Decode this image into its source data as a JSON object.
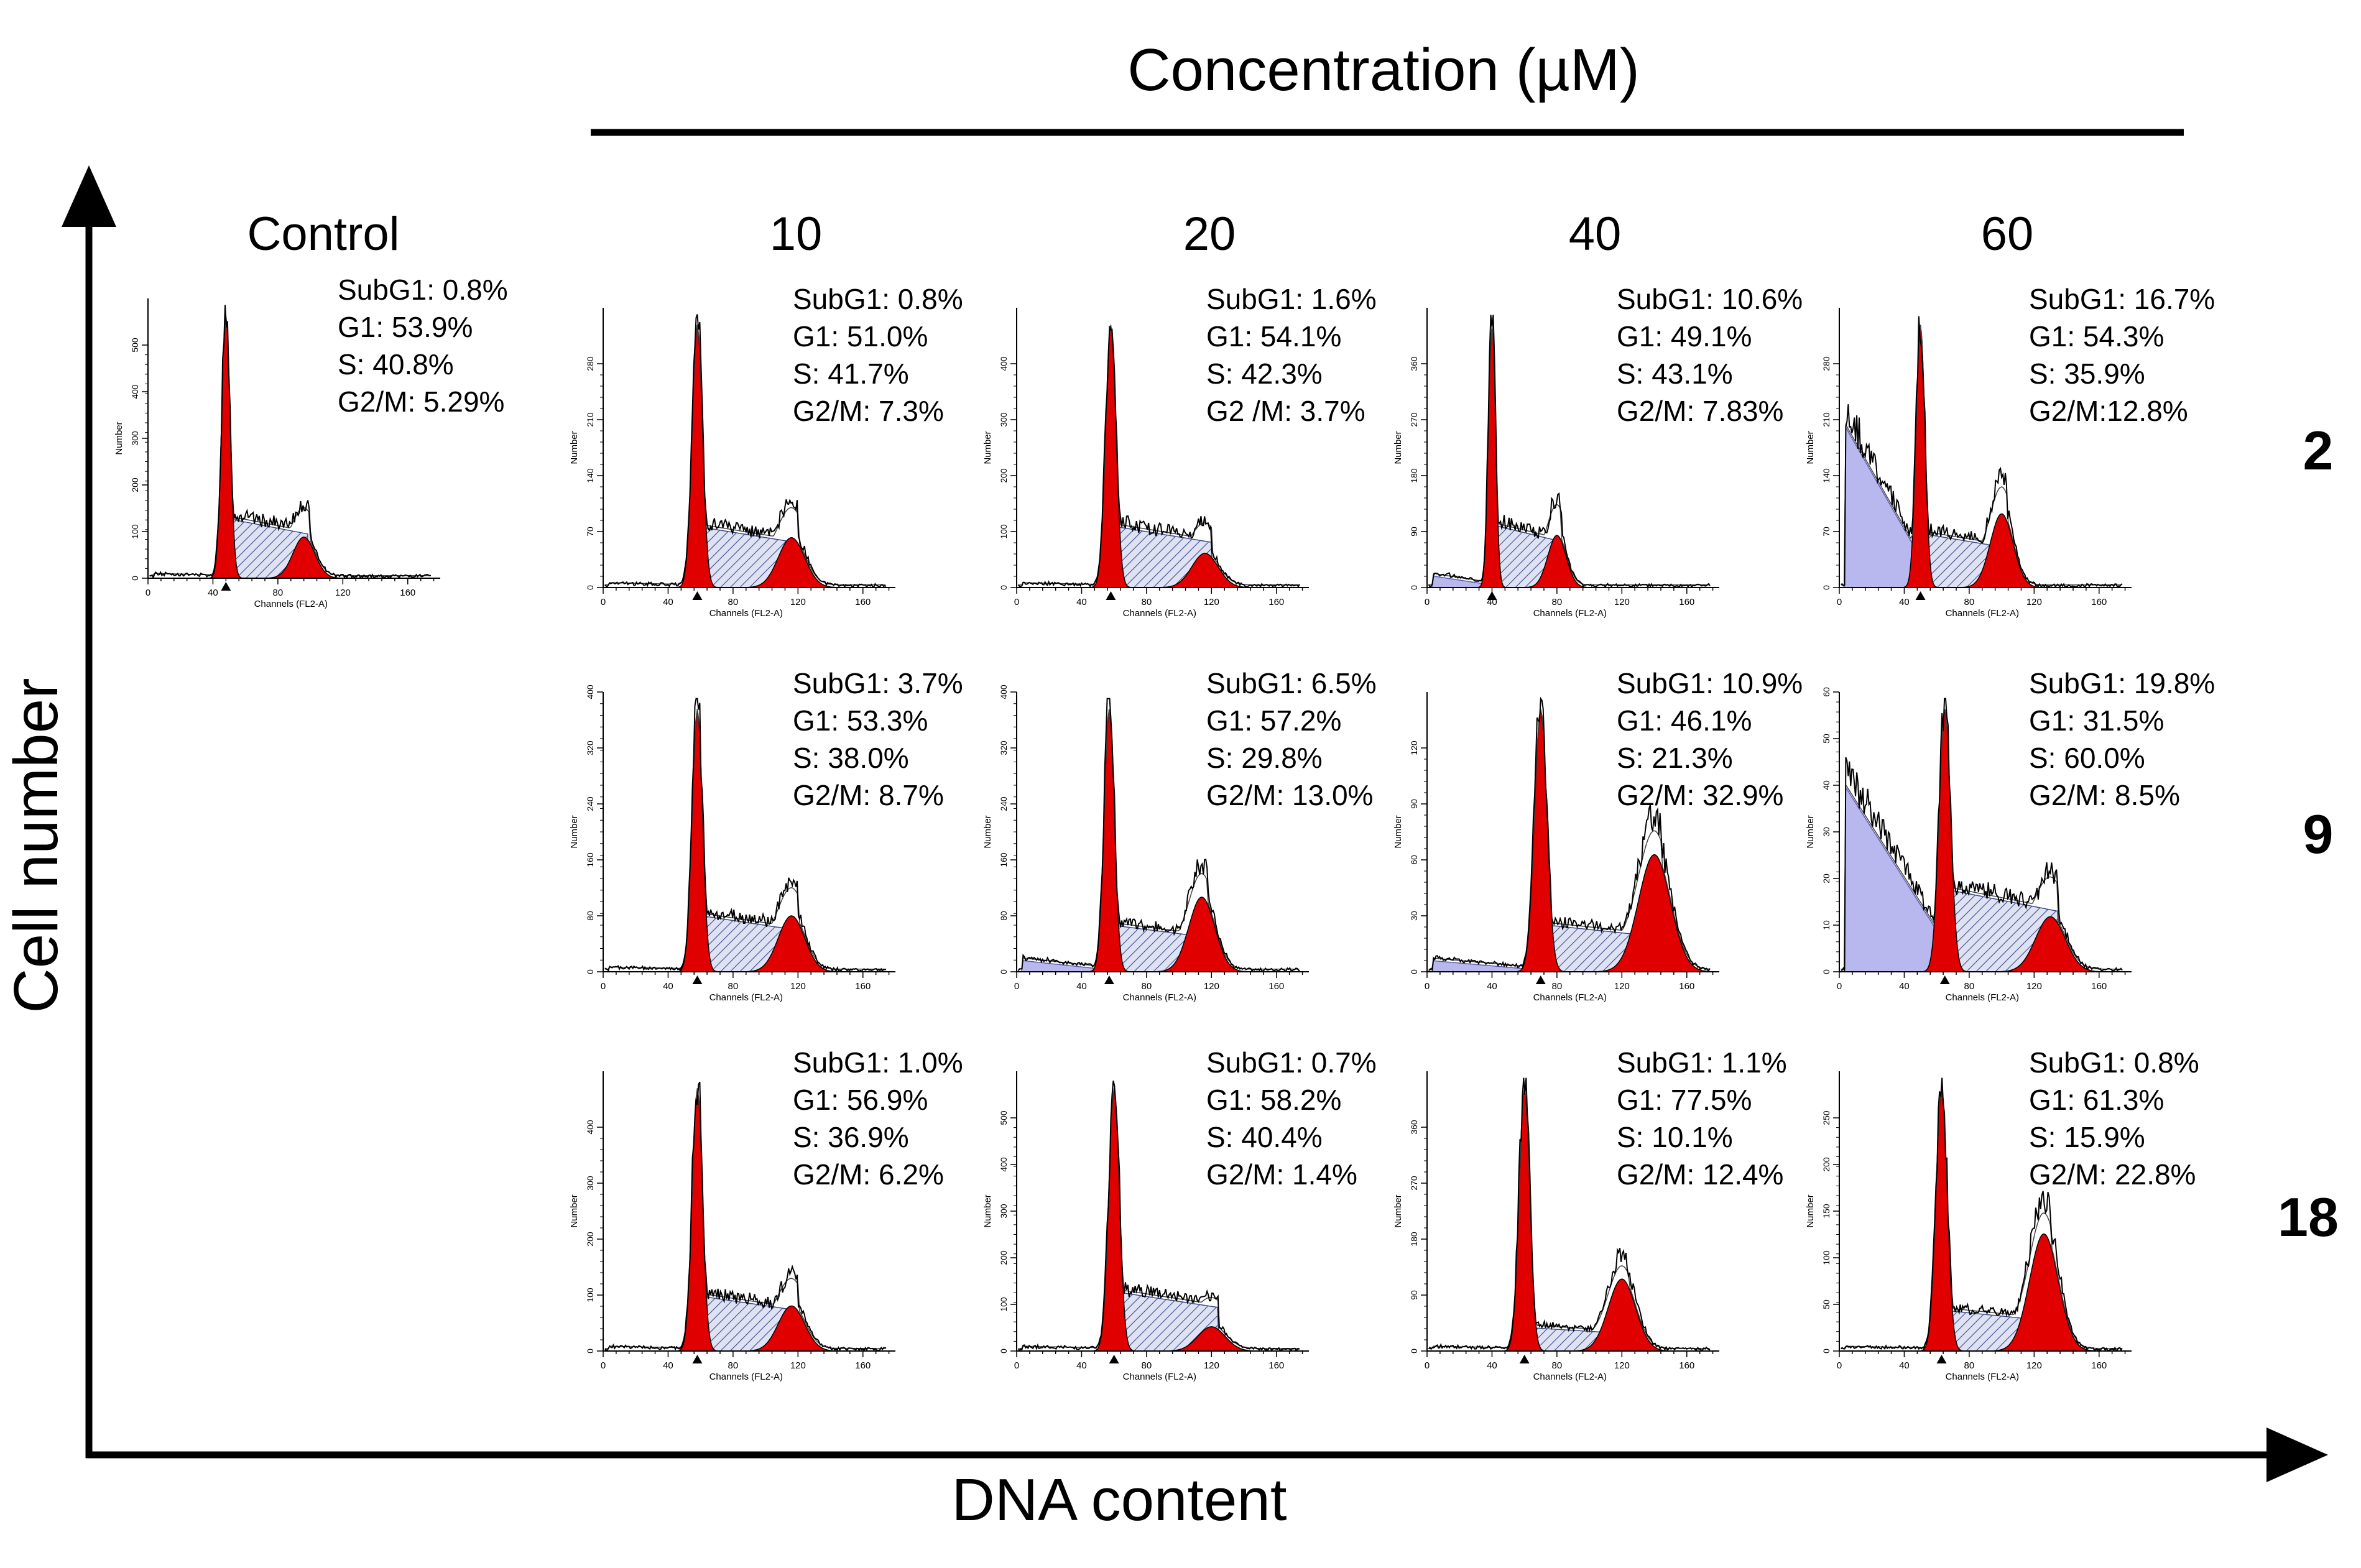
{
  "figure": {
    "header": "Concentration (µM)",
    "y_axis_label": "Cell number",
    "x_axis_label": "DNA content",
    "panel_x_title": "Channels (FL2-A)",
    "panel_y_title": "Number",
    "x_ticks": [
      "0",
      "40",
      "80",
      "120",
      "160"
    ],
    "columns": [
      {
        "label": "Control"
      },
      {
        "label": "10"
      },
      {
        "label": "20"
      },
      {
        "label": "40"
      },
      {
        "label": "60"
      }
    ],
    "rows": [
      {
        "label": "2"
      },
      {
        "label": "9"
      },
      {
        "label": "18"
      }
    ],
    "colors": {
      "g1_g2m_fill": "#e00000",
      "s_phase_hatch": "#3a4a8a",
      "s_phase_fill": "#dfe2f2",
      "subg1_fill": "#b8b8ee",
      "trace": "#000000"
    }
  },
  "chart_data": [
    {
      "type": "histogram",
      "row": "2",
      "column": "Control",
      "x_range": [
        0,
        180
      ],
      "y_max": 600,
      "y_ticks": [
        "0",
        "100",
        "200",
        "300",
        "400",
        "500"
      ],
      "stats": [
        "SubG1: 0.8%",
        "G1: 53.9%",
        "S: 40.8%",
        "G2/M: 5.29%"
      ],
      "g1_mean": 48,
      "g2_mean": 96,
      "subg1_pct": 0.8,
      "g1_pct": 53.9,
      "s_pct": 40.8,
      "g2m_pct": 5.29
    },
    {
      "type": "histogram",
      "row": "2",
      "column": "10",
      "x_range": [
        0,
        180
      ],
      "y_max": 350,
      "y_ticks": [
        "0",
        "70",
        "140",
        "210",
        "280"
      ],
      "stats": [
        "SubG1: 0.8%",
        "G1: 51.0%",
        "S: 41.7%",
        "G2/M: 7.3%"
      ],
      "g1_mean": 58,
      "g2_mean": 116,
      "subg1_pct": 0.8,
      "g1_pct": 51.0,
      "s_pct": 41.7,
      "g2m_pct": 7.3
    },
    {
      "type": "histogram",
      "row": "2",
      "column": "20",
      "x_range": [
        0,
        180
      ],
      "y_max": 500,
      "y_ticks": [
        "0",
        "100",
        "200",
        "300",
        "400"
      ],
      "stats": [
        "SubG1: 1.6%",
        "G1: 54.1%",
        "S: 42.3%",
        "G2 /M: 3.7%"
      ],
      "g1_mean": 58,
      "g2_mean": 116,
      "subg1_pct": 1.6,
      "g1_pct": 54.1,
      "s_pct": 42.3,
      "g2m_pct": 3.7
    },
    {
      "type": "histogram",
      "row": "2",
      "column": "40",
      "x_range": [
        0,
        180
      ],
      "y_max": 450,
      "y_ticks": [
        "0",
        "90",
        "180",
        "270",
        "360"
      ],
      "stats": [
        "SubG1: 10.6%",
        "G1: 49.1%",
        "S: 43.1%",
        "G2/M: 7.83%"
      ],
      "g1_mean": 40,
      "g2_mean": 80,
      "subg1_pct": 10.6,
      "g1_pct": 49.1,
      "s_pct": 43.1,
      "g2m_pct": 7.83
    },
    {
      "type": "histogram",
      "row": "2",
      "column": "60",
      "x_range": [
        0,
        180
      ],
      "y_max": 350,
      "y_ticks": [
        "0",
        "70",
        "140",
        "210",
        "280"
      ],
      "stats": [
        "SubG1: 16.7%",
        "G1: 54.3%",
        "S: 35.9%",
        "G2/M:12.8%"
      ],
      "g1_mean": 50,
      "g2_mean": 100,
      "subg1_pct": 16.7,
      "g1_pct": 54.3,
      "s_pct": 35.9,
      "g2m_pct": 12.8
    },
    {
      "type": "histogram",
      "row": "9",
      "column": "10",
      "x_range": [
        0,
        180
      ],
      "y_max": 400,
      "y_ticks": [
        "0",
        "80",
        "160",
        "240",
        "320",
        "400"
      ],
      "stats": [
        "SubG1: 3.7%",
        "G1: 53.3%",
        "S: 38.0%",
        "G2/M: 8.7%"
      ],
      "g1_mean": 58,
      "g2_mean": 116,
      "subg1_pct": 3.7,
      "g1_pct": 53.3,
      "s_pct": 38.0,
      "g2m_pct": 8.7
    },
    {
      "type": "histogram",
      "row": "9",
      "column": "20",
      "x_range": [
        0,
        180
      ],
      "y_max": 400,
      "y_ticks": [
        "0",
        "80",
        "160",
        "240",
        "320",
        "400"
      ],
      "stats": [
        "SubG1: 6.5%",
        "G1: 57.2%",
        "S: 29.8%",
        "G2/M: 13.0%"
      ],
      "g1_mean": 57,
      "g2_mean": 114,
      "subg1_pct": 6.5,
      "g1_pct": 57.2,
      "s_pct": 29.8,
      "g2m_pct": 13.0
    },
    {
      "type": "histogram",
      "row": "9",
      "column": "40",
      "x_range": [
        0,
        180
      ],
      "y_max": 150,
      "y_ticks": [
        "0",
        "30",
        "60",
        "90",
        "120"
      ],
      "stats": [
        "SubG1: 10.9%",
        "G1: 46.1%",
        "S: 21.3%",
        "G2/M: 32.9%"
      ],
      "g1_mean": 70,
      "g2_mean": 140,
      "subg1_pct": 10.9,
      "g1_pct": 46.1,
      "s_pct": 21.3,
      "g2m_pct": 32.9
    },
    {
      "type": "histogram",
      "row": "9",
      "column": "60",
      "x_range": [
        0,
        180
      ],
      "y_max": 60,
      "y_ticks": [
        "0",
        "10",
        "20",
        "30",
        "40",
        "50",
        "60"
      ],
      "stats": [
        "SubG1: 19.8%",
        "G1: 31.5%",
        "S: 60.0%",
        "G2/M: 8.5%"
      ],
      "g1_mean": 65,
      "g2_mean": 130,
      "subg1_pct": 19.8,
      "g1_pct": 31.5,
      "s_pct": 60.0,
      "g2m_pct": 8.5
    },
    {
      "type": "histogram",
      "row": "18",
      "column": "10",
      "x_range": [
        0,
        180
      ],
      "y_max": 500,
      "y_ticks": [
        "0",
        "100",
        "200",
        "300",
        "400"
      ],
      "stats": [
        "SubG1: 1.0%",
        "G1: 56.9%",
        "S: 36.9%",
        "G2/M: 6.2%"
      ],
      "g1_mean": 58,
      "g2_mean": 116,
      "subg1_pct": 1.0,
      "g1_pct": 56.9,
      "s_pct": 36.9,
      "g2m_pct": 6.2
    },
    {
      "type": "histogram",
      "row": "18",
      "column": "20",
      "x_range": [
        0,
        180
      ],
      "y_max": 600,
      "y_ticks": [
        "0",
        "100",
        "200",
        "300",
        "400",
        "500"
      ],
      "stats": [
        "SubG1: 0.7%",
        "G1: 58.2%",
        "S: 40.4%",
        "G2/M: 1.4%"
      ],
      "g1_mean": 60,
      "g2_mean": 120,
      "subg1_pct": 0.7,
      "g1_pct": 58.2,
      "s_pct": 40.4,
      "g2m_pct": 1.4
    },
    {
      "type": "histogram",
      "row": "18",
      "column": "40",
      "x_range": [
        0,
        180
      ],
      "y_max": 450,
      "y_ticks": [
        "0",
        "90",
        "180",
        "270",
        "360"
      ],
      "stats": [
        "SubG1: 1.1%",
        "G1: 77.5%",
        "S: 10.1%",
        "G2/M: 12.4%"
      ],
      "g1_mean": 60,
      "g2_mean": 120,
      "subg1_pct": 1.1,
      "g1_pct": 77.5,
      "s_pct": 10.1,
      "g2m_pct": 12.4
    },
    {
      "type": "histogram",
      "row": "18",
      "column": "60",
      "x_range": [
        0,
        180
      ],
      "y_max": 300,
      "y_ticks": [
        "0",
        "50",
        "100",
        "150",
        "200",
        "250"
      ],
      "stats": [
        "SubG1: 0.8%",
        "G1: 61.3%",
        "S: 15.9%",
        "G2/M: 22.8%"
      ],
      "g1_mean": 63,
      "g2_mean": 126,
      "subg1_pct": 0.8,
      "g1_pct": 61.3,
      "s_pct": 15.9,
      "g2m_pct": 22.8
    }
  ]
}
